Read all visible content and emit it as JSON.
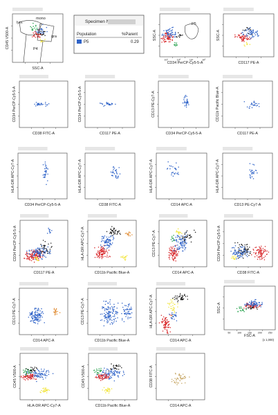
{
  "colors": {
    "blue": "#2f63c8",
    "red": "#d8282b",
    "green": "#22a04a",
    "black": "#222222",
    "yellow": "#f2e53a",
    "orange": "#e08a30",
    "tan": "#c8a868",
    "gray": "#9a9a9a"
  },
  "legend": {
    "specimen_label": "Specimen N...",
    "col_population": "Population",
    "col_parent": "%Parent",
    "rows": [
      {
        "name": "P5",
        "value": "0.29"
      }
    ]
  },
  "chart_data": [
    {
      "id": "p1",
      "type": "scatter",
      "xlabel": "SSC-A",
      "ylabel": "CD45 V500-A",
      "gates": [
        "lym",
        "mono",
        "gra",
        "P4"
      ],
      "series": [
        {
          "name": "lym",
          "color": "blue",
          "values": []
        }
      ]
    },
    {
      "id": "p3",
      "type": "scatter",
      "xlabel": "CD34 PerCP-Cy5-5-A",
      "ylabel": "SSC-A",
      "gates": [
        "P5"
      ],
      "x_ticks": [
        "10²",
        "10³",
        "10⁴",
        "10⁵"
      ]
    },
    {
      "id": "p4",
      "type": "scatter",
      "xlabel": "CD117 PE-A",
      "ylabel": "SSC-A"
    },
    {
      "id": "p5",
      "type": "scatter",
      "xlabel": "CD38 FITC-A",
      "ylabel": "CD34 PerCP-Cy5-5-A"
    },
    {
      "id": "p6",
      "type": "scatter",
      "xlabel": "CD117 PE-A",
      "ylabel": "CD34 PerCP-Cy5-5-A"
    },
    {
      "id": "p7",
      "type": "scatter",
      "xlabel": "CD34 PerCP-Cy5-5-A",
      "ylabel": "CD13 PE-Cy7-A"
    },
    {
      "id": "p8",
      "type": "scatter",
      "xlabel": "CD117 PE-A",
      "ylabel": "CD11b Pacific Blue-A"
    },
    {
      "id": "p9",
      "type": "scatter",
      "xlabel": "CD34 PerCP-Cy5-5-A",
      "ylabel": "HLA-DR APC-Cy7-A"
    },
    {
      "id": "p10",
      "type": "scatter",
      "xlabel": "CD38 FITC-A",
      "ylabel": "HLA-DR APC-Cy7-A"
    },
    {
      "id": "p11",
      "type": "scatter",
      "xlabel": "CD14 APC-A",
      "ylabel": "HLA-DR APC-Cy7-A"
    },
    {
      "id": "p12",
      "type": "scatter",
      "xlabel": "CD13 PE-Cy7-A",
      "ylabel": "HLA-DR APC-Cy7-A"
    },
    {
      "id": "p13",
      "type": "scatter",
      "xlabel": "CD117 PE-A",
      "ylabel": "CD34 PerCP-Cy5-5-A"
    },
    {
      "id": "p14",
      "type": "scatter",
      "xlabel": "CD11b Pacific Blue-A",
      "ylabel": "HLA-DR APC-Cy7-A"
    },
    {
      "id": "p15",
      "type": "scatter",
      "xlabel": "CD14 APC-A",
      "ylabel": "CD13 PE-Cy7-A"
    },
    {
      "id": "p16",
      "type": "scatter",
      "xlabel": "CD38 FITC-A",
      "ylabel": "CD34 PerCP-Cy5-5-A"
    },
    {
      "id": "p17",
      "type": "scatter",
      "xlabel": "CD14 APC-A",
      "ylabel": "CD13 PE-Cy7-A"
    },
    {
      "id": "p18",
      "type": "scatter",
      "xlabel": "CD11b Pacific Blue-A",
      "ylabel": "CD13 PE-Cy7-A"
    },
    {
      "id": "p19",
      "type": "scatter",
      "xlabel": "CD14 APC-A",
      "ylabel": "HLA-DR APC-Cy7-A"
    },
    {
      "id": "p20",
      "type": "scatter",
      "xlabel": "FSC-A",
      "ylabel": "SSC-A",
      "x_ticks": [
        "50",
        "100",
        "150",
        "200",
        "250"
      ],
      "x_scale_note": "(x 1,000)"
    },
    {
      "id": "p21",
      "type": "scatter",
      "xlabel": "HLA-DR APC-Cy7-A",
      "ylabel": "CD45 V500-A"
    },
    {
      "id": "p22",
      "type": "scatter",
      "xlabel": "CD11b Pacific Blue-A",
      "ylabel": "CD45 V500-A"
    },
    {
      "id": "p23",
      "type": "scatter",
      "xlabel": "CD14 APC-A",
      "ylabel": "CD38 FITC-A"
    }
  ]
}
